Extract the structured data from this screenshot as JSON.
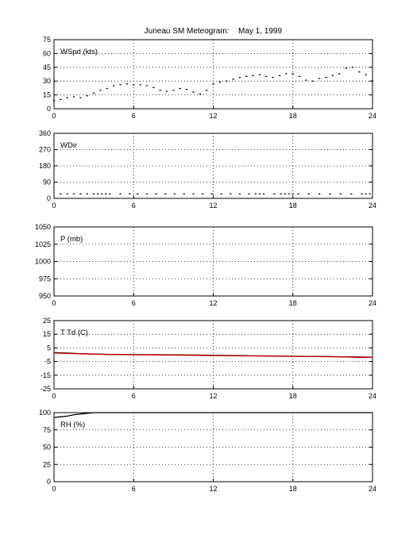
{
  "header": {
    "title": "Juneau SM Meteogram:",
    "date": "May   1, 1999"
  },
  "chart_data": [
    {
      "type": "scatter",
      "panel_label": "WSpd (kts)",
      "xlim": [
        0,
        24
      ],
      "xticks": [
        "0",
        "6",
        "12",
        "18",
        "24"
      ],
      "ylim": [
        0,
        75
      ],
      "yticks": [
        "75",
        "60",
        "45",
        "30",
        "15",
        "0"
      ],
      "grid": "dotted",
      "series": [
        {
          "color": "#000000",
          "x": [
            0,
            0.5,
            1,
            1.5,
            2,
            2.5,
            3,
            3.5,
            4,
            4.5,
            5,
            5.5,
            6,
            6.5,
            7,
            7.5,
            8,
            8.5,
            9,
            9.5,
            10,
            10.5,
            11,
            11.5,
            12,
            12.5,
            13,
            13.5,
            14,
            14.5,
            15,
            15.5,
            16,
            16.5,
            17,
            17.5,
            18,
            18.5,
            19,
            19.5,
            20,
            20.5,
            21,
            21.5,
            22,
            22.5,
            23,
            23.5,
            24
          ],
          "y": [
            9,
            10,
            12,
            13,
            12,
            14,
            17,
            20,
            22,
            25,
            26,
            27,
            26,
            26,
            25,
            23,
            20,
            19,
            20,
            22,
            21,
            18,
            16,
            20,
            27,
            29,
            30,
            32,
            34,
            35,
            36,
            37,
            35,
            34,
            36,
            38,
            38,
            35,
            31,
            30,
            33,
            34,
            36,
            38,
            44,
            45,
            40,
            37,
            30
          ]
        }
      ]
    },
    {
      "type": "scatter",
      "panel_label": "WDir",
      "xlim": [
        0,
        24
      ],
      "xticks": [
        "0",
        "6",
        "12",
        "18",
        "24"
      ],
      "ylim": [
        0,
        360
      ],
      "yticks": [
        "360",
        "270",
        "180",
        "90",
        "0"
      ],
      "grid": "dotted",
      "series": [
        {
          "color": "#000000",
          "x": [
            0.5,
            1,
            1.5,
            2,
            2.5,
            3,
            3.3,
            3.6,
            3.9,
            4.2,
            5,
            5.7,
            6.3,
            7,
            7.7,
            8.4,
            9.1,
            9.8,
            10.5,
            11.2,
            11.9,
            12.6,
            13.3,
            14,
            14.7,
            15.2,
            15.5,
            15.8,
            16.6,
            17.1,
            17.4,
            17.7,
            18,
            18.4,
            19.2,
            20,
            20.8,
            21.6,
            22.4,
            23.2,
            23.5,
            23.8
          ],
          "y": [
            25,
            25,
            25,
            25,
            25,
            25,
            25,
            25,
            25,
            25,
            25,
            25,
            25,
            25,
            25,
            25,
            25,
            25,
            25,
            25,
            25,
            25,
            25,
            25,
            25,
            25,
            25,
            25,
            25,
            25,
            25,
            25,
            25,
            25,
            25,
            25,
            25,
            25,
            25,
            25,
            25,
            25
          ]
        }
      ]
    },
    {
      "type": "line",
      "panel_label": "P (mb)",
      "xlim": [
        0,
        24
      ],
      "xticks": [
        "0",
        "6",
        "12",
        "18",
        "24"
      ],
      "ylim": [
        950,
        1050
      ],
      "yticks": [
        "1050",
        "1025",
        "1000",
        "975",
        "950"
      ],
      "grid": "dotted",
      "series": []
    },
    {
      "type": "line",
      "panel_label": "T Td (C)",
      "xlim": [
        0,
        24
      ],
      "xticks": [
        "0",
        "6",
        "12",
        "18",
        "24"
      ],
      "ylim": [
        -25,
        25
      ],
      "yticks": [
        "25",
        "15",
        "5",
        "-5",
        "-15",
        "-25"
      ],
      "grid": "dotted",
      "series": [
        {
          "color": "#000000",
          "x": [
            0,
            1,
            2,
            3,
            4,
            5,
            6,
            7,
            8,
            9,
            10,
            11,
            12,
            13,
            14,
            15,
            16,
            17,
            18,
            19,
            20,
            21,
            22,
            23,
            24
          ],
          "y": [
            1.5,
            1.2,
            0.8,
            0.5,
            0.3,
            0.2,
            0.1,
            0,
            0,
            -0.1,
            -0.2,
            -0.3,
            -0.4,
            -0.5,
            -0.6,
            -0.8,
            -0.9,
            -1,
            -1.1,
            -1.2,
            -1.3,
            -1.4,
            -1.5,
            -1.6,
            -1.8
          ]
        },
        {
          "color": "#cc0000",
          "x": [
            0,
            1,
            2,
            3,
            4,
            5,
            6,
            7,
            8,
            9,
            10,
            11,
            12,
            13,
            14,
            15,
            16,
            17,
            18,
            19,
            20,
            21,
            22,
            23,
            24
          ],
          "y": [
            1.2,
            1,
            0.7,
            0.4,
            0.2,
            0.1,
            0,
            -0.1,
            -0.2,
            -0.3,
            -0.4,
            -0.5,
            -0.6,
            -0.7,
            -0.8,
            -0.9,
            -1,
            -1.1,
            -1.2,
            -1.3,
            -1.4,
            -1.5,
            -1.7,
            -1.9,
            -2
          ]
        }
      ]
    },
    {
      "type": "line",
      "panel_label": "RH (%)",
      "xlim": [
        0,
        24
      ],
      "xticks": [
        "0",
        "6",
        "12",
        "18",
        "24"
      ],
      "ylim": [
        0,
        100
      ],
      "yticks": [
        "100",
        "75",
        "50",
        "25",
        "0"
      ],
      "grid": "dotted",
      "series": [
        {
          "color": "#000000",
          "x": [
            0,
            0.5,
            1,
            1.5,
            2,
            2.5,
            3,
            3.5,
            4,
            5,
            6,
            8,
            10,
            12,
            14,
            16,
            18,
            20,
            22,
            24
          ],
          "y": [
            93,
            94,
            95,
            97,
            98,
            99,
            100,
            100,
            100,
            100,
            100,
            100,
            100,
            100,
            100,
            100,
            100,
            100,
            100,
            100
          ]
        }
      ]
    }
  ]
}
